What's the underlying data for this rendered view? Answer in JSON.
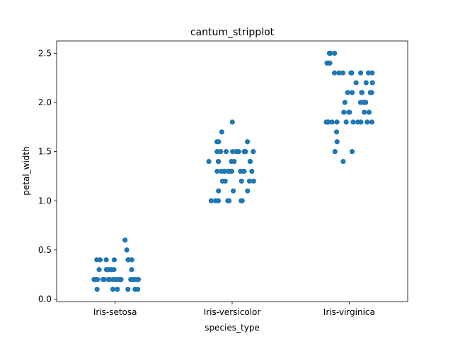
{
  "chart_data": {
    "type": "scatter",
    "title": "cantum_stripplot",
    "xlabel": "species_type",
    "ylabel": "petal_width",
    "categories": [
      "Iris-setosa",
      "Iris-versicolor",
      "Iris-virginica"
    ],
    "ylim": [
      -0.025,
      2.625
    ],
    "yticks": [
      "0.0",
      "0.5",
      "1.0",
      "1.5",
      "2.0",
      "2.5"
    ],
    "grid": false,
    "point_color": "#1f77b4",
    "series": [
      {
        "category": "Iris-setosa",
        "values": [
          0.2,
          0.2,
          0.2,
          0.2,
          0.2,
          0.4,
          0.3,
          0.2,
          0.2,
          0.1,
          0.2,
          0.2,
          0.1,
          0.1,
          0.2,
          0.4,
          0.4,
          0.3,
          0.3,
          0.3,
          0.2,
          0.4,
          0.2,
          0.5,
          0.2,
          0.2,
          0.4,
          0.2,
          0.2,
          0.2,
          0.2,
          0.4,
          0.1,
          0.2,
          0.1,
          0.2,
          0.2,
          0.1,
          0.2,
          0.2,
          0.3,
          0.3,
          0.2,
          0.6,
          0.4,
          0.3,
          0.2,
          0.2,
          0.2,
          0.2
        ]
      },
      {
        "category": "Iris-versicolor",
        "values": [
          1.4,
          1.5,
          1.5,
          1.3,
          1.5,
          1.3,
          1.6,
          1.0,
          1.3,
          1.4,
          1.0,
          1.5,
          1.0,
          1.4,
          1.3,
          1.4,
          1.5,
          1.0,
          1.5,
          1.1,
          1.8,
          1.3,
          1.5,
          1.2,
          1.3,
          1.4,
          1.4,
          1.7,
          1.5,
          1.0,
          1.1,
          1.0,
          1.2,
          1.6,
          1.5,
          1.6,
          1.5,
          1.3,
          1.3,
          1.3,
          1.2,
          1.4,
          1.2,
          1.0,
          1.3,
          1.2,
          1.3,
          1.3,
          1.1,
          1.3
        ]
      },
      {
        "category": "Iris-virginica",
        "values": [
          2.5,
          1.9,
          2.1,
          1.8,
          2.2,
          2.1,
          1.7,
          1.8,
          1.8,
          2.5,
          2.0,
          1.9,
          2.1,
          2.0,
          2.4,
          2.3,
          1.8,
          2.2,
          2.3,
          1.5,
          2.3,
          2.0,
          2.0,
          1.8,
          2.1,
          1.8,
          1.8,
          1.8,
          2.1,
          1.6,
          1.9,
          2.0,
          2.2,
          1.5,
          1.4,
          2.3,
          2.4,
          1.8,
          1.8,
          2.1,
          2.4,
          2.3,
          1.9,
          2.3,
          2.5,
          2.3,
          1.9,
          2.0,
          2.3,
          1.8
        ]
      }
    ]
  }
}
